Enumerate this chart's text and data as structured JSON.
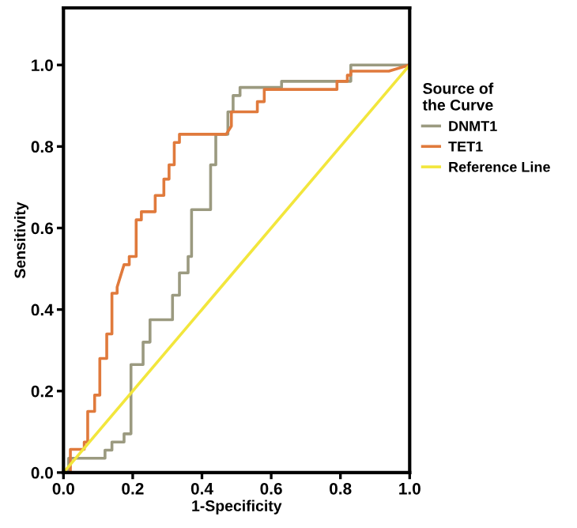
{
  "chart_data": {
    "type": "line",
    "xlabel": "1-Specificity",
    "ylabel": "Sensitivity",
    "legend_title": "Source of the Curve",
    "legend": "right",
    "grid": false,
    "marker": "none",
    "line_style": "solid",
    "xlim": [
      0,
      1
    ],
    "ylim": [
      0,
      1.14
    ],
    "xticks": [
      {
        "value": 0,
        "label": "0.0"
      },
      {
        "value": 0.2,
        "label": "0.2"
      },
      {
        "value": 0.4,
        "label": "0.4"
      },
      {
        "value": 0.6,
        "label": "0.6"
      },
      {
        "value": 0.8,
        "label": "0.8"
      },
      {
        "value": 1,
        "label": "1.0"
      }
    ],
    "yticks": [
      {
        "value": 0,
        "label": "0.0"
      },
      {
        "value": 0.2,
        "label": "0.2"
      },
      {
        "value": 0.4,
        "label": "0.4"
      },
      {
        "value": 0.6,
        "label": "0.6"
      },
      {
        "value": 0.8,
        "label": "0.8"
      },
      {
        "value": 1,
        "label": "1.0"
      }
    ],
    "series": [
      {
        "name": "DNMT1",
        "color": "#9b9a80",
        "x": [
          0,
          0.015,
          0.015,
          0.12,
          0.12,
          0.14,
          0.14,
          0.175,
          0.175,
          0.195,
          0.195,
          0.23,
          0.23,
          0.25,
          0.25,
          0.315,
          0.315,
          0.335,
          0.335,
          0.36,
          0.36,
          0.37,
          0.37,
          0.425,
          0.425,
          0.44,
          0.44,
          0.475,
          0.475,
          0.49,
          0.49,
          0.51,
          0.51,
          0.63,
          0.63,
          0.83,
          0.83,
          1
        ],
        "values": [
          0,
          0,
          0.035,
          0.035,
          0.055,
          0.055,
          0.075,
          0.075,
          0.095,
          0.095,
          0.265,
          0.265,
          0.32,
          0.32,
          0.375,
          0.375,
          0.435,
          0.435,
          0.49,
          0.49,
          0.53,
          0.53,
          0.645,
          0.645,
          0.755,
          0.755,
          0.83,
          0.83,
          0.885,
          0.885,
          0.925,
          0.925,
          0.945,
          0.945,
          0.96,
          0.96,
          1,
          1
        ]
      },
      {
        "name": "TET1",
        "color": "#e07a3c",
        "x": [
          0,
          0.02,
          0.02,
          0.06,
          0.06,
          0.07,
          0.07,
          0.09,
          0.09,
          0.105,
          0.105,
          0.125,
          0.125,
          0.14,
          0.14,
          0.155,
          0.155,
          0.175,
          0.19,
          0.19,
          0.21,
          0.21,
          0.225,
          0.225,
          0.265,
          0.265,
          0.29,
          0.29,
          0.305,
          0.305,
          0.32,
          0.32,
          0.335,
          0.335,
          0.47,
          0.485,
          0.485,
          0.56,
          0.56,
          0.58,
          0.58,
          0.79,
          0.79,
          0.82,
          0.82,
          0.83,
          0.83,
          0.94,
          1
        ],
        "values": [
          0,
          0,
          0.057,
          0.057,
          0.075,
          0.075,
          0.15,
          0.15,
          0.19,
          0.19,
          0.28,
          0.28,
          0.34,
          0.34,
          0.44,
          0.44,
          0.455,
          0.51,
          0.51,
          0.53,
          0.53,
          0.62,
          0.62,
          0.64,
          0.64,
          0.68,
          0.68,
          0.72,
          0.72,
          0.755,
          0.755,
          0.81,
          0.81,
          0.83,
          0.83,
          0.85,
          0.885,
          0.885,
          0.91,
          0.91,
          0.94,
          0.94,
          0.96,
          0.96,
          0.975,
          0.975,
          0.985,
          0.985,
          1
        ]
      },
      {
        "name": "Reference Line",
        "color": "#f2e63c",
        "x": [
          0,
          1
        ],
        "values": [
          0,
          1
        ]
      }
    ]
  }
}
